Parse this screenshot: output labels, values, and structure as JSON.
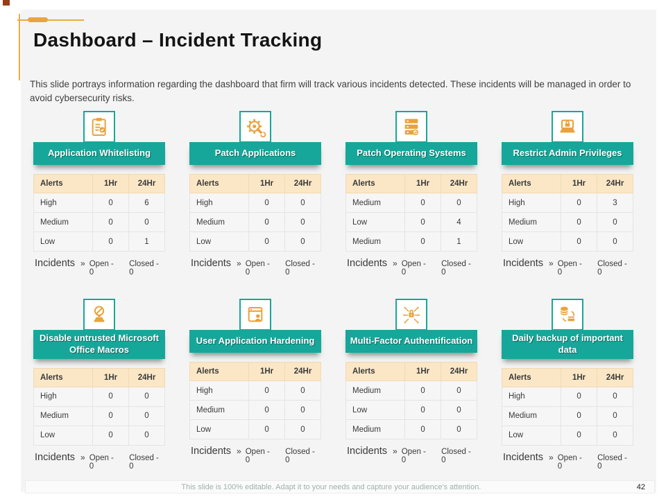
{
  "slide": {
    "title": "Dashboard – Incident Tracking",
    "description": "This slide portrays information regarding the dashboard that firm will track various incidents detected. These incidents will be managed in order to avoid cybersecurity risks.",
    "footer_note": "This slide is 100% editable. Adapt it to your needs and capture  your audience's attention.",
    "page_number": "42"
  },
  "colors": {
    "teal": "#17a79a",
    "orange": "#e9a23b",
    "cream_header": "#fbe7c6",
    "decor_orange": "#eda33c",
    "corner_block": "#9a3c16"
  },
  "table": {
    "columns": [
      "Alerts",
      "1Hr",
      "24Hr"
    ]
  },
  "incidents": {
    "label": "Incidents",
    "chevron": "»",
    "open": "Open - 0",
    "closed": "Closed - 0"
  },
  "panels": [
    {
      "title": "Application Whitelisting",
      "icon": "clipboard-checklist-icon",
      "rows": [
        [
          "High",
          "0",
          "6"
        ],
        [
          "Medium",
          "0",
          "0"
        ],
        [
          "Low",
          "0",
          "1"
        ]
      ]
    },
    {
      "title": "Patch Applications",
      "icon": "gear-wrench-icon",
      "rows": [
        [
          "High",
          "0",
          "0"
        ],
        [
          "Medium",
          "0",
          "0"
        ],
        [
          "Low",
          "0",
          "0"
        ]
      ]
    },
    {
      "title": "Patch Operating Systems",
      "icon": "server-stack-icon",
      "rows": [
        [
          "Medium",
          "0",
          "0"
        ],
        [
          "Low",
          "0",
          "4"
        ],
        [
          "Medium",
          "0",
          "1"
        ]
      ]
    },
    {
      "title": "Restrict Admin Privileges",
      "icon": "laptop-lock-icon",
      "rows": [
        [
          "High",
          "0",
          "3"
        ],
        [
          "Medium",
          "0",
          "0"
        ],
        [
          "Low",
          "0",
          "0"
        ]
      ]
    },
    {
      "title": "Disable untrusted Microsoft Office Macros",
      "icon": "prohibition-stamp-icon",
      "rows": [
        [
          "High",
          "0",
          "0"
        ],
        [
          "Medium",
          "0",
          "0"
        ],
        [
          "Low",
          "0",
          "0"
        ]
      ]
    },
    {
      "title": "User Application Hardening",
      "icon": "app-window-user-icon",
      "rows": [
        [
          "High",
          "0",
          "0"
        ],
        [
          "Medium",
          "0",
          "0"
        ],
        [
          "Low",
          "0",
          "0"
        ]
      ]
    },
    {
      "title": "Multi-Factor Authentification",
      "icon": "network-lock-icon",
      "rows": [
        [
          "Medium",
          "0",
          "0"
        ],
        [
          "Low",
          "0",
          "0"
        ],
        [
          "Medium",
          "0",
          "0"
        ]
      ]
    },
    {
      "title": "Daily backup of important data",
      "icon": "database-backup-icon",
      "rows": [
        [
          "High",
          "0",
          "0"
        ],
        [
          "Medium",
          "0",
          "0"
        ],
        [
          "Low",
          "0",
          "0"
        ]
      ]
    }
  ]
}
